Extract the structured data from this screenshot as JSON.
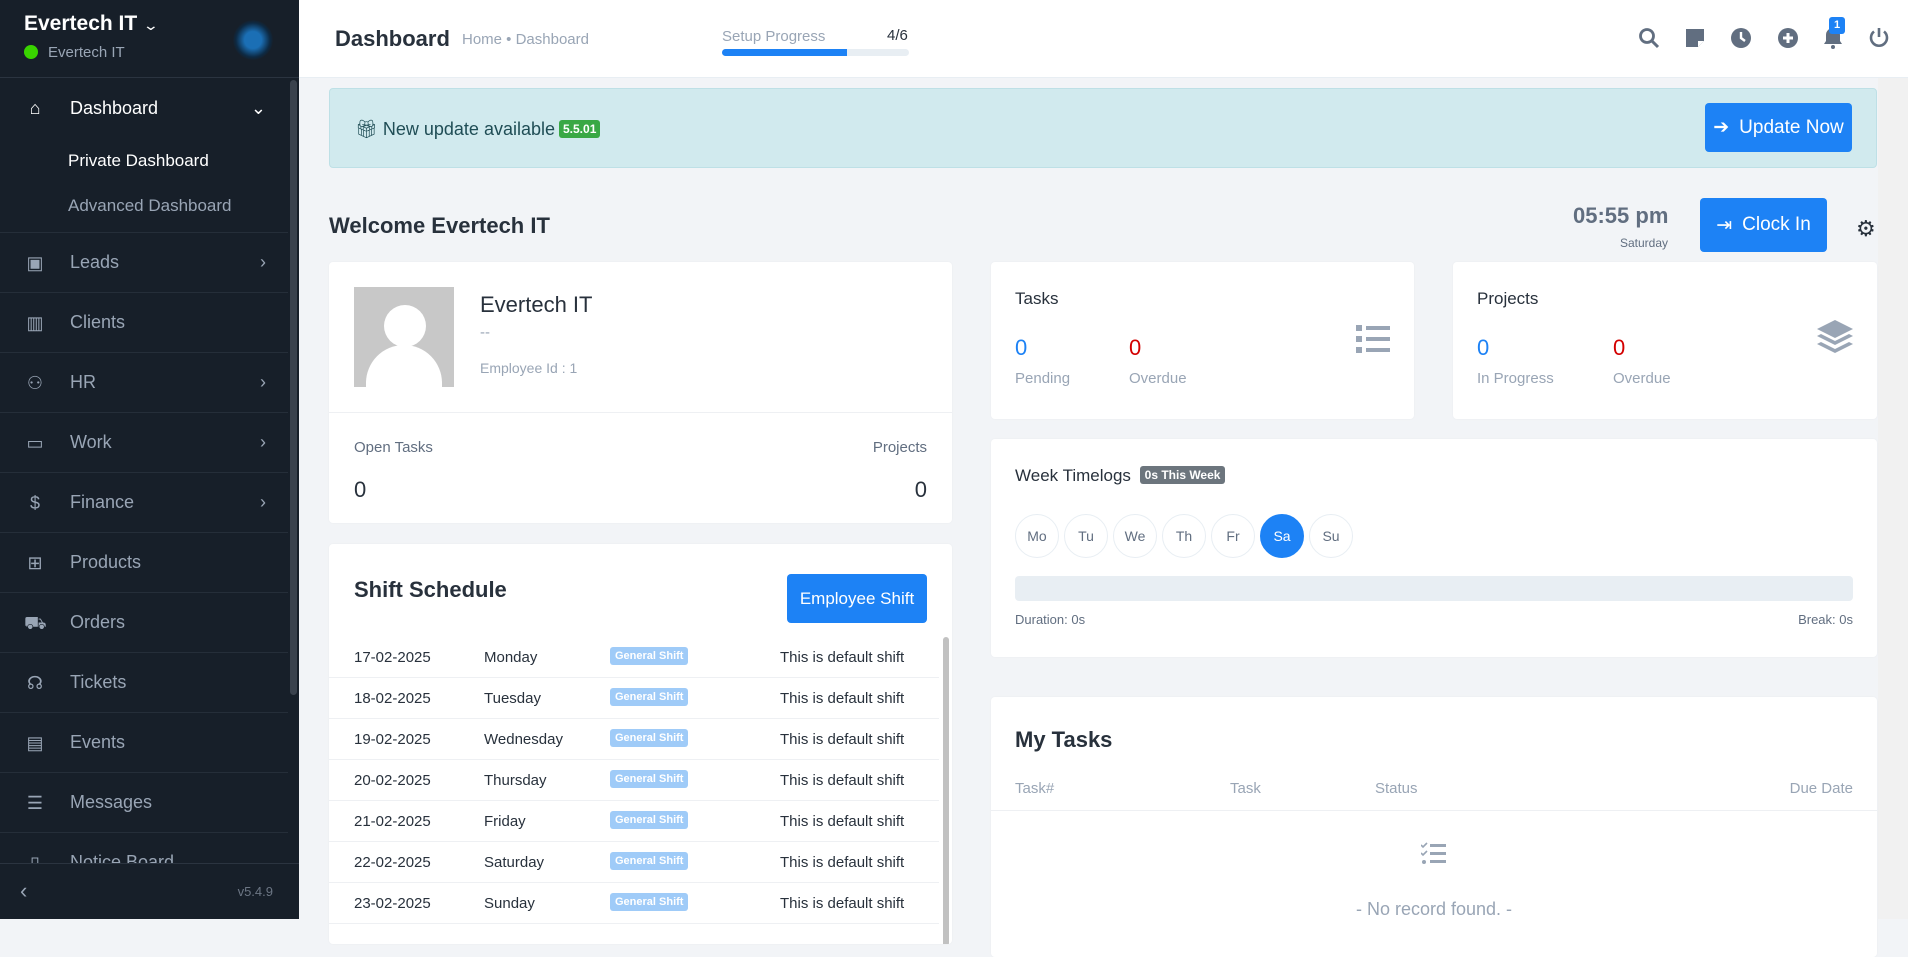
{
  "sidebar": {
    "company": "Evertech IT",
    "status_name": "Evertech IT",
    "version": "v5.4.9",
    "items": [
      {
        "label": "Dashboard",
        "icon": "home-icon"
      },
      {
        "label": "Leads",
        "icon": "id-card-icon"
      },
      {
        "label": "Clients",
        "icon": "building-icon"
      },
      {
        "label": "HR",
        "icon": "people-icon"
      },
      {
        "label": "Work",
        "icon": "briefcase-icon"
      },
      {
        "label": "Finance",
        "icon": "dollar-icon"
      },
      {
        "label": "Products",
        "icon": "basket-icon"
      },
      {
        "label": "Orders",
        "icon": "cart-icon"
      },
      {
        "label": "Tickets",
        "icon": "headset-icon"
      },
      {
        "label": "Events",
        "icon": "calendar-icon"
      },
      {
        "label": "Messages",
        "icon": "message-icon"
      },
      {
        "label": "Notice Board",
        "icon": "clipboard-icon"
      }
    ],
    "sub_items": [
      "Private Dashboard",
      "Advanced Dashboard"
    ]
  },
  "header": {
    "title": "Dashboard",
    "breadcrumb": "Home • Dashboard",
    "setup_label": "Setup Progress",
    "setup_value": "4/6",
    "setup_progress": 0.667,
    "notification_count": "1"
  },
  "banner": {
    "text": "New update available",
    "version": "5.5.01",
    "button": "Update Now"
  },
  "welcome": {
    "title": "Welcome Evertech IT",
    "time": "05:55 pm",
    "day": "Saturday",
    "clock_in": "Clock In"
  },
  "profile": {
    "name": "Evertech IT",
    "designation": "--",
    "employee_id": "Employee Id : 1",
    "open_tasks_label": "Open Tasks",
    "open_tasks": "0",
    "projects_label": "Projects",
    "projects": "0"
  },
  "shift": {
    "title": "Shift Schedule",
    "button": "Employee Shift",
    "rows": [
      {
        "date": "17-02-2025",
        "day": "Monday",
        "shift": "General Shift",
        "note": "This is default shift"
      },
      {
        "date": "18-02-2025",
        "day": "Tuesday",
        "shift": "General Shift",
        "note": "This is default shift"
      },
      {
        "date": "19-02-2025",
        "day": "Wednesday",
        "shift": "General Shift",
        "note": "This is default shift"
      },
      {
        "date": "20-02-2025",
        "day": "Thursday",
        "shift": "General Shift",
        "note": "This is default shift"
      },
      {
        "date": "21-02-2025",
        "day": "Friday",
        "shift": "General Shift",
        "note": "This is default shift"
      },
      {
        "date": "22-02-2025",
        "day": "Saturday",
        "shift": "General Shift",
        "note": "This is default shift"
      },
      {
        "date": "23-02-2025",
        "day": "Sunday",
        "shift": "General Shift",
        "note": "This is default shift"
      }
    ]
  },
  "tasks": {
    "title": "Tasks",
    "pending": "0",
    "pending_label": "Pending",
    "overdue": "0",
    "overdue_label": "Overdue"
  },
  "projects": {
    "title": "Projects",
    "in_progress": "0",
    "in_progress_label": "In Progress",
    "overdue": "0",
    "overdue_label": "Overdue"
  },
  "timelogs": {
    "title": "Week Timelogs",
    "badge": "0s This Week",
    "days": [
      "Mo",
      "Tu",
      "We",
      "Th",
      "Fr",
      "Sa",
      "Su"
    ],
    "selected": "Sa",
    "duration": "Duration: 0s",
    "break": "Break: 0s"
  },
  "my_tasks": {
    "title": "My Tasks",
    "columns": [
      "Task#",
      "Task",
      "Status",
      "Due Date"
    ],
    "empty": "- No record found. -"
  },
  "colors": {
    "accent": "#1d82f5",
    "danger": "#d30000",
    "sidebar": "#171f29",
    "online": "#39d400"
  }
}
